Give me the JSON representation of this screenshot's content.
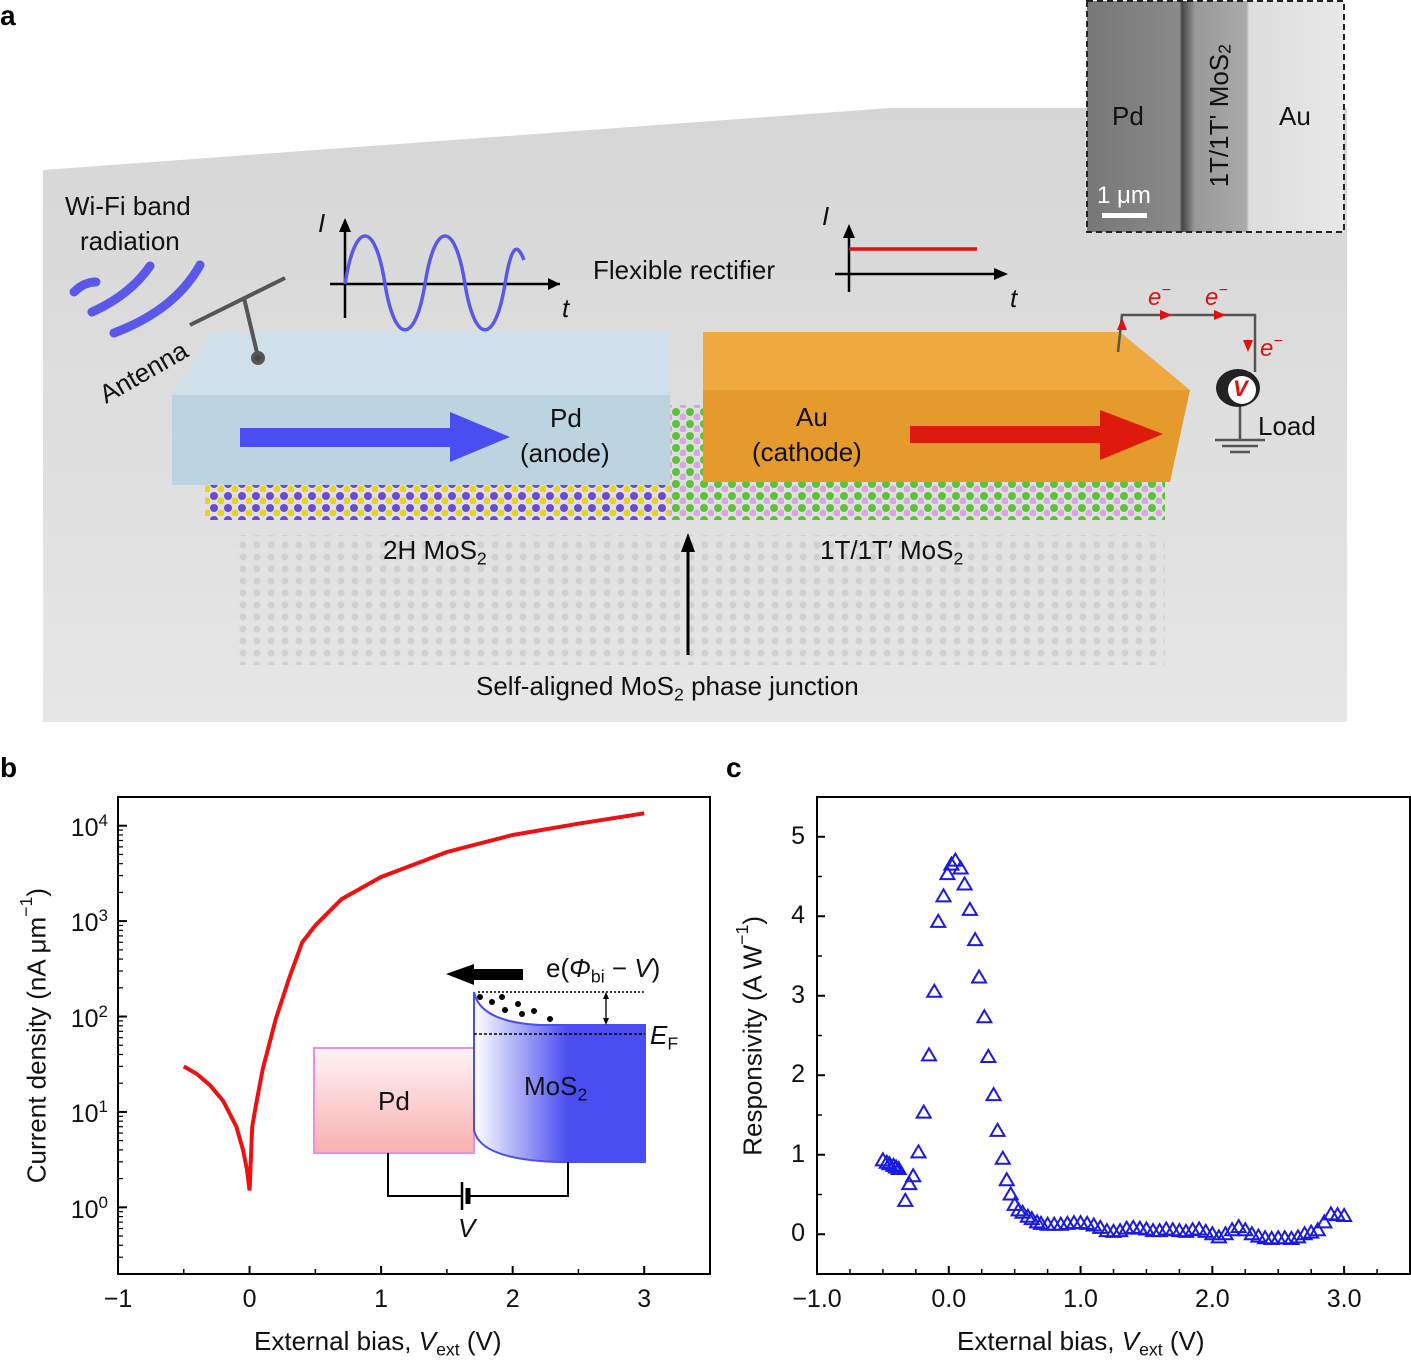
{
  "panel_labels": {
    "a": "a",
    "b": "b",
    "c": "c"
  },
  "panel_a": {
    "wifi_label_line1": "Wi-Fi band",
    "wifi_label_line2": "radiation",
    "antenna": "Antenna",
    "ac_axis_i": "I",
    "ac_axis_t": "t",
    "rectifier": "Flexible rectifier",
    "dc_axis_i": "I",
    "dc_axis_t": "t",
    "pd_label": "Pd",
    "pd_role": "(anode)",
    "au_label": "Au",
    "au_role": "(cathode)",
    "electron": "e",
    "electron_sup": "−",
    "load": "Load",
    "voltmeter": "V",
    "left_phase": {
      "text": "2H MoS",
      "sub": "2"
    },
    "right_phase": {
      "text": "1T/1T′ MoS",
      "sub": "2"
    },
    "junction": {
      "text": "Self-aligned MoS",
      "sub": "2",
      "rest": " phase junction"
    },
    "sem_inset": {
      "left": "Pd",
      "middle": "1T/1T' MoS",
      "middle_sub": "2",
      "right": "Au",
      "scale_bar": "1 μm"
    },
    "colors": {
      "pd_box": "#bcd4e0",
      "au_box": "#e59a2c",
      "forward_arrow": "#4a4df0",
      "reverse_arrow": "#dd1a0c",
      "mo_atom": "#6a4bd0",
      "s_atom": "#e8d21c",
      "s_atom_1t": "#d9a4e0",
      "mo_atom_1t": "#5cc23a"
    }
  },
  "chart_data": [
    {
      "panel": "b",
      "type": "line",
      "xlabel": {
        "text": "External bias, ",
        "var": "V",
        "sub": "ext",
        "unit": " (V)"
      },
      "ylabel": {
        "text": "Current density (nA μm",
        "sup": "−1",
        "end": ")"
      },
      "xlim": [
        -1,
        3.5
      ],
      "ylim": [
        0.2,
        20000
      ],
      "yscale": "log",
      "xticks": [
        "−1",
        "0",
        "1",
        "2",
        "3"
      ],
      "xtick_values": [
        -1,
        0,
        1,
        2,
        3
      ],
      "yticks": [
        {
          "base": "10",
          "exp": "0",
          "v": 1
        },
        {
          "base": "10",
          "exp": "1",
          "v": 10
        },
        {
          "base": "10",
          "exp": "2",
          "v": 100
        },
        {
          "base": "10",
          "exp": "3",
          "v": 1000
        },
        {
          "base": "10",
          "exp": "4",
          "v": 10000
        }
      ],
      "grid": false,
      "series": [
        {
          "color": "#ee1111",
          "x": [
            -0.5,
            -0.4,
            -0.3,
            -0.2,
            -0.1,
            -0.05,
            -0.02,
            0,
            0.02,
            0.05,
            0.1,
            0.2,
            0.3,
            0.4,
            0.5,
            0.7,
            1.0,
            1.5,
            2.0,
            2.5,
            3.0
          ],
          "y": [
            30,
            25,
            19,
            13,
            7,
            4,
            2.5,
            1.5,
            7,
            12,
            28,
            95,
            250,
            600,
            900,
            1700,
            2900,
            5300,
            8000,
            10500,
            13500
          ]
        }
      ],
      "inset": {
        "metal": "Pd",
        "semiconductor": "MoS",
        "semiconductor_sub": "2",
        "barrier": {
          "a": "e(",
          "phi": "Φ",
          "sub": "bi",
          "b": " − ",
          "v": "V",
          "c": ")"
        },
        "fermi": "E",
        "fermi_sub": "F",
        "bias": "V"
      }
    },
    {
      "panel": "c",
      "type": "scatter",
      "marker": "open-triangle",
      "xlabel": {
        "text": "External bias, ",
        "var": "V",
        "sub": "ext",
        "unit": " (V)"
      },
      "ylabel": {
        "text": "Responsivity (A W",
        "sup": "−1",
        "end": ")"
      },
      "xlim": [
        -1,
        3.5
      ],
      "ylim": [
        -0.5,
        5.5
      ],
      "xticks": [
        "−1.0",
        "0.0",
        "1.0",
        "2.0",
        "3.0"
      ],
      "xtick_values": [
        -1,
        0,
        1,
        2,
        3
      ],
      "yticks": [
        "0",
        "1",
        "2",
        "3",
        "4",
        "5"
      ],
      "ytick_values": [
        0,
        1,
        2,
        3,
        4,
        5
      ],
      "grid": false,
      "series": [
        {
          "color": "#1a1ae0",
          "x": [
            -0.5,
            -0.47,
            -0.45,
            -0.42,
            -0.4,
            -0.38,
            -0.33,
            -0.3,
            -0.27,
            -0.23,
            -0.19,
            -0.15,
            -0.11,
            -0.08,
            -0.04,
            -0.01,
            0.02,
            0.05,
            0.09,
            0.12,
            0.16,
            0.2,
            0.23,
            0.27,
            0.3,
            0.34,
            0.37,
            0.41,
            0.44,
            0.47,
            0.5,
            0.53,
            0.56,
            0.6,
            0.63,
            0.67,
            0.7,
            0.75,
            0.8,
            0.85,
            0.9,
            0.95,
            1.0,
            1.05,
            1.1,
            1.15,
            1.2,
            1.25,
            1.3,
            1.35,
            1.4,
            1.45,
            1.5,
            1.55,
            1.6,
            1.65,
            1.7,
            1.75,
            1.8,
            1.85,
            1.9,
            1.95,
            2.0,
            2.05,
            2.1,
            2.15,
            2.2,
            2.25,
            2.3,
            2.35,
            2.4,
            2.45,
            2.5,
            2.55,
            2.6,
            2.65,
            2.7,
            2.75,
            2.8,
            2.85,
            2.9,
            2.95,
            3.0
          ],
          "y": [
            0.93,
            0.9,
            0.88,
            0.86,
            0.84,
            0.82,
            0.42,
            0.63,
            0.73,
            1.03,
            1.53,
            2.25,
            3.05,
            3.93,
            4.25,
            4.53,
            4.65,
            4.7,
            4.6,
            4.4,
            4.08,
            3.7,
            3.23,
            2.73,
            2.23,
            1.75,
            1.3,
            0.95,
            0.68,
            0.5,
            0.37,
            0.3,
            0.27,
            0.22,
            0.19,
            0.15,
            0.13,
            0.12,
            0.12,
            0.12,
            0.13,
            0.14,
            0.14,
            0.13,
            0.11,
            0.08,
            0.04,
            0.03,
            0.04,
            0.07,
            0.08,
            0.07,
            0.06,
            0.04,
            0.04,
            0.06,
            0.05,
            0.04,
            0.03,
            0.05,
            0.06,
            0.03,
            0.0,
            -0.04,
            0.0,
            0.05,
            0.09,
            0.05,
            0.0,
            -0.03,
            -0.05,
            -0.06,
            -0.05,
            -0.05,
            -0.06,
            -0.04,
            0.0,
            0.02,
            0.05,
            0.15,
            0.25,
            0.24,
            0.23
          ]
        }
      ]
    }
  ]
}
